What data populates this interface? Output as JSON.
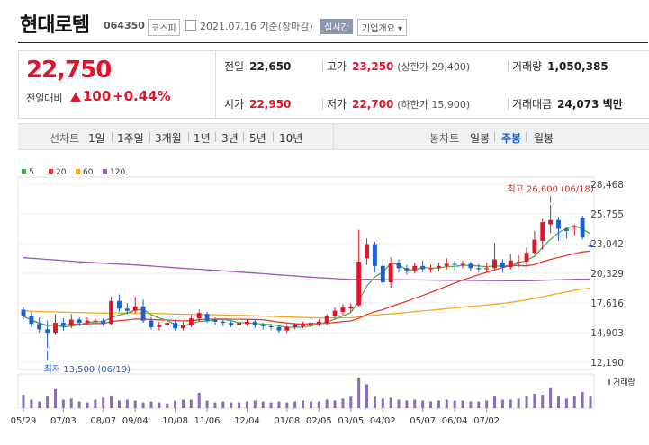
{
  "header": {
    "name": "현대로템",
    "code": "064350",
    "market": "코스피",
    "date": "2021.07.16 기준(장마감)",
    "realtime": "실시간",
    "overview": "기업개요"
  },
  "quote": {
    "price": "22,750",
    "prev_label": "전일대비",
    "change": "100",
    "change_pct": "+0.44%",
    "prev_close_label": "전일",
    "prev_close": "22,650",
    "high_label": "고가",
    "high": "23,250",
    "upper_limit": "(상한가 29,400)",
    "volume_label": "거래량",
    "volume": "1,050,385",
    "open_label": "시가",
    "open": "22,950",
    "low_label": "저가",
    "low": "22,700",
    "lower_limit": "(하한가 15,900)",
    "value_label": "거래대금",
    "value": "24,073 백만"
  },
  "toolbar": {
    "line_label": "선차트",
    "line_items": [
      "1일",
      "1주일",
      "3개월",
      "1년",
      "3년",
      "5년",
      "10년"
    ],
    "candle_label": "봉차트",
    "candle_items": [
      "일봉",
      "주봉",
      "월봉"
    ],
    "active_candle": "주봉"
  },
  "colors": {
    "up": "#e0142b",
    "down": "#1b5fd1",
    "ma5": "#4caf50",
    "ma20": "#e53935",
    "ma60": "#f5a623",
    "ma120": "#9b59b6"
  },
  "chart_data": {
    "type": "candlestick",
    "interval": "weekly",
    "legend": [
      "5",
      "20",
      "60",
      "120"
    ],
    "y_ticks": [
      "28,468",
      "25,755",
      "23,042",
      "20,329",
      "17,616",
      "14,903",
      "12,190"
    ],
    "ylim": [
      12190,
      28468
    ],
    "x_ticks": [
      "05/29",
      "07/03",
      "08/07",
      "09/04",
      "10/08",
      "11/06",
      "12/04",
      "01/08",
      "02/05",
      "03/05",
      "04/02",
      "05/07",
      "06/04",
      "07/02"
    ],
    "high_annotation": "최고 26,600 (06/18)",
    "low_annotation": "최저 13,500 (06/19)",
    "volume_label": "거래량",
    "candles": [
      [
        17000,
        16400,
        17300,
        16100
      ],
      [
        16400,
        15700,
        16800,
        15400
      ],
      [
        15700,
        15200,
        16300,
        14900
      ],
      [
        15200,
        14900,
        16000,
        13500
      ],
      [
        14900,
        15800,
        16600,
        14700
      ],
      [
        15800,
        15500,
        16200,
        15100
      ],
      [
        15600,
        16100,
        16600,
        15300
      ],
      [
        16100,
        15800,
        16300,
        15500
      ],
      [
        15800,
        16000,
        16300,
        15600
      ],
      [
        15900,
        16000,
        16200,
        15700
      ],
      [
        16000,
        15700,
        16200,
        15500
      ],
      [
        15700,
        17800,
        18200,
        15600
      ],
      [
        17800,
        17100,
        18400,
        16800
      ],
      [
        17100,
        16900,
        17600,
        16600
      ],
      [
        16900,
        17300,
        18200,
        16700
      ],
      [
        17300,
        16000,
        17900,
        15800
      ],
      [
        16000,
        15400,
        16300,
        15200
      ],
      [
        15400,
        15600,
        15900,
        15100
      ],
      [
        15600,
        15800,
        16000,
        15400
      ],
      [
        15800,
        15300,
        16100,
        15100
      ],
      [
        15300,
        15600,
        15900,
        15100
      ],
      [
        15600,
        16200,
        16500,
        15400
      ],
      [
        16200,
        16700,
        17000,
        15900
      ],
      [
        16600,
        16000,
        16800,
        15800
      ],
      [
        16100,
        15900,
        16300,
        15600
      ],
      [
        15900,
        15800,
        16100,
        15500
      ],
      [
        15800,
        15600,
        16000,
        15400
      ],
      [
        15600,
        15800,
        16000,
        15400
      ],
      [
        15700,
        15900,
        16100,
        15500
      ],
      [
        15900,
        15600,
        16100,
        15300
      ],
      [
        15600,
        15500,
        15800,
        15200
      ],
      [
        15500,
        15400,
        15700,
        15100
      ],
      [
        15400,
        15100,
        15600,
        14900
      ],
      [
        15100,
        15400,
        15700,
        14900
      ],
      [
        15400,
        15600,
        15800,
        15200
      ],
      [
        15500,
        15700,
        15900,
        15300
      ],
      [
        15600,
        15800,
        16000,
        15400
      ],
      [
        15700,
        15900,
        16100,
        15500
      ],
      [
        15800,
        16400,
        16600,
        15600
      ],
      [
        16400,
        16900,
        17200,
        16200
      ],
      [
        16800,
        17200,
        17500,
        16500
      ],
      [
        17100,
        17300,
        17600,
        16800
      ],
      [
        17400,
        21400,
        24300,
        17300
      ],
      [
        21700,
        23000,
        23500,
        21100
      ],
      [
        23000,
        21000,
        23200,
        20400
      ],
      [
        21000,
        19500,
        21500,
        19200
      ],
      [
        19500,
        21300,
        21800,
        19000
      ],
      [
        21300,
        20800,
        21600,
        20400
      ],
      [
        20800,
        20600,
        21100,
        20200
      ],
      [
        20600,
        21000,
        21300,
        20300
      ],
      [
        21000,
        20700,
        21500,
        20400
      ],
      [
        20700,
        20800,
        21100,
        20400
      ],
      [
        20800,
        21000,
        21300,
        20500
      ],
      [
        21000,
        21200,
        21700,
        20700
      ],
      [
        21200,
        21100,
        21500,
        20600
      ],
      [
        21100,
        21200,
        21500,
        20800
      ],
      [
        21200,
        20800,
        21400,
        20500
      ],
      [
        20800,
        20700,
        21200,
        20400
      ],
      [
        20700,
        20800,
        21300,
        20400
      ],
      [
        20800,
        21600,
        23100,
        20600
      ],
      [
        21300,
        20900,
        21600,
        20400
      ],
      [
        20900,
        21500,
        22100,
        20700
      ],
      [
        21300,
        21400,
        22000,
        20900
      ],
      [
        21400,
        22200,
        22700,
        21000
      ],
      [
        22200,
        23400,
        24200,
        22000
      ],
      [
        23300,
        25000,
        25300,
        22500
      ],
      [
        24800,
        25200,
        26600,
        24000
      ],
      [
        25200,
        24400,
        25500,
        23300
      ],
      [
        24400,
        24200,
        24500,
        23500
      ],
      [
        24500,
        24600,
        24800,
        23800
      ],
      [
        25400,
        23600,
        25600,
        23400
      ],
      [
        22900,
        22750,
        23250,
        22700
      ]
    ],
    "volumes": [
      1.4,
      0.9,
      0.7,
      1.3,
      2.0,
      0.9,
      1.0,
      0.7,
      0.6,
      0.9,
      1.1,
      1.3,
      0.8,
      0.9,
      0.8,
      0.6,
      0.7,
      0.6,
      0.5,
      0.8,
      0.9,
      0.9,
      1.6,
      0.8,
      0.6,
      0.7,
      0.6,
      0.6,
      0.7,
      0.8,
      0.7,
      0.6,
      0.7,
      0.6,
      0.7,
      0.8,
      0.7,
      0.7,
      0.9,
      0.8,
      1.0,
      1.2,
      3.2,
      2.5,
      1.2,
      1.0,
      1.1,
      0.9,
      0.8,
      0.9,
      0.8,
      0.7,
      0.8,
      0.9,
      0.8,
      0.8,
      0.7,
      0.7,
      0.8,
      1.3,
      0.9,
      0.9,
      1.0,
      1.3,
      1.5,
      1.4,
      2.1,
      1.3,
      1.0,
      1.3,
      1.7,
      1.3
    ]
  }
}
